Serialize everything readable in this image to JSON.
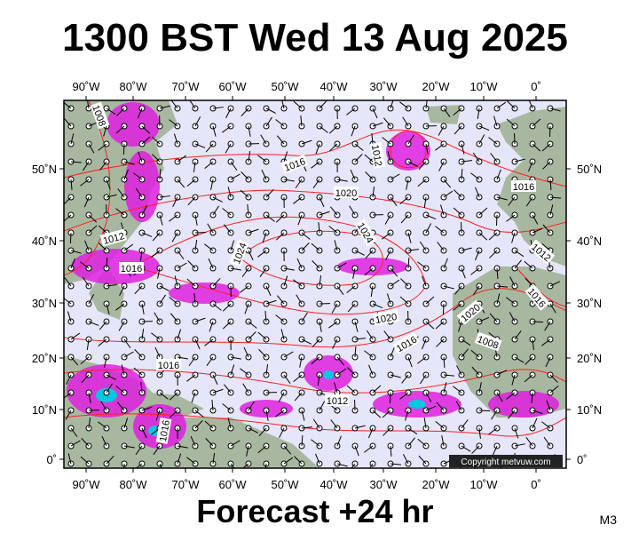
{
  "header": {
    "title": "1300 BST Wed 13 Aug 2025"
  },
  "footer": {
    "subtitle": "Forecast +24 hr",
    "model": "M3",
    "copyright": "Copyright metvuw.com"
  },
  "map": {
    "longitude_labels": [
      "90˚W",
      "80˚W",
      "70˚W",
      "60˚W",
      "50˚W",
      "40˚W",
      "30˚W",
      "20˚W",
      "10˚W",
      "0˚"
    ],
    "latitude_labels": [
      "50˚N",
      "40˚N",
      "30˚N",
      "20˚N",
      "10˚N",
      "0˚"
    ],
    "isobar_labels": [
      "1008",
      "1016",
      "1012",
      "1020",
      "1024",
      "1016",
      "1012",
      "1016",
      "1024",
      "1020",
      "1016",
      "1016",
      "1012",
      "1016",
      "1012",
      "1008",
      "1020",
      "1016"
    ]
  }
}
